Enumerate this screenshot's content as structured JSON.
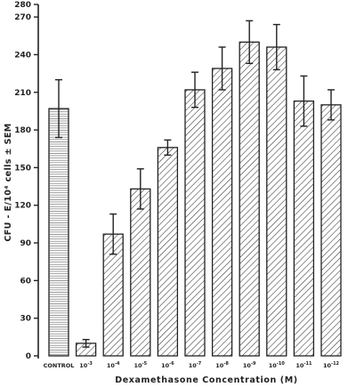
{
  "chart_data": {
    "type": "bar",
    "categories": [
      "CONTROL",
      "10^-3",
      "10^-4",
      "10^-5",
      "10^-6",
      "10^-7",
      "10^-8",
      "10^-9",
      "10^-10",
      "10^-11",
      "10^-12"
    ],
    "category_labels": [
      {
        "base": "CONTROL",
        "exp": ""
      },
      {
        "base": "10",
        "exp": "-3"
      },
      {
        "base": "10",
        "exp": "-4"
      },
      {
        "base": "10",
        "exp": "-5"
      },
      {
        "base": "10",
        "exp": "-6"
      },
      {
        "base": "10",
        "exp": "-7"
      },
      {
        "base": "10",
        "exp": "-8"
      },
      {
        "base": "10",
        "exp": "-9"
      },
      {
        "base": "10",
        "exp": "-10"
      },
      {
        "base": "10",
        "exp": "-11"
      },
      {
        "base": "10",
        "exp": "-12"
      }
    ],
    "values": [
      197,
      10,
      97,
      133,
      166,
      212,
      229,
      250,
      246,
      203,
      200
    ],
    "sem": [
      23,
      3,
      16,
      16,
      6,
      14,
      17,
      17,
      18,
      20,
      12
    ],
    "bar_patterns": [
      "horizontal",
      "diagonal",
      "diagonal",
      "diagonal",
      "diagonal",
      "diagonal",
      "diagonal",
      "diagonal",
      "diagonal",
      "diagonal",
      "diagonal"
    ],
    "xlabel": "Dexamethasone Concentration (M)",
    "ylabel": "CFU - E/10⁴ cells ± SEM",
    "ylim": [
      0,
      280
    ],
    "yticks": [
      0,
      30,
      60,
      90,
      120,
      150,
      180,
      210,
      240,
      270,
      280
    ],
    "grid": false,
    "legend": "none",
    "colors": {
      "axis": "#222222",
      "bar_fill": "#ffffff",
      "hatch": "#333333",
      "errorbar": "#222222"
    }
  }
}
